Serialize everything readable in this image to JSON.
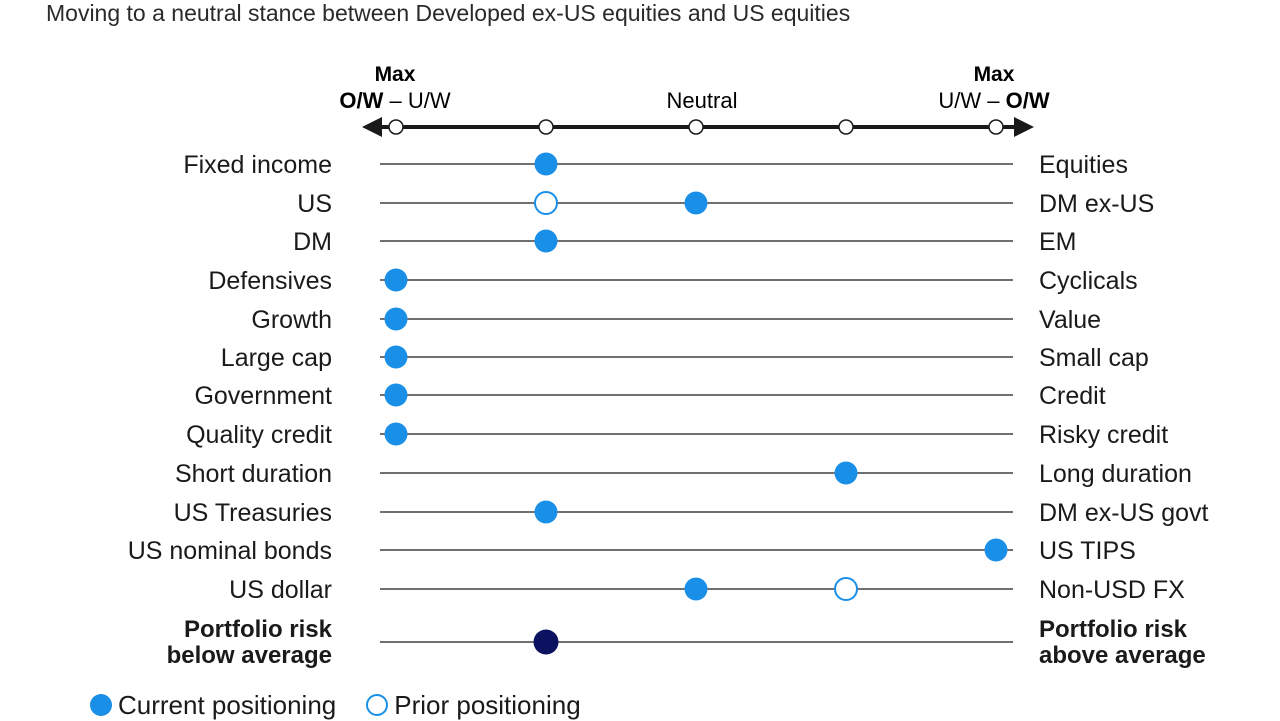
{
  "title": "Moving to a neutral stance between Developed ex-US equities and US equities",
  "colors": {
    "current": "#1a8fe8",
    "prior_outline": "#1a8fe8",
    "portfolio": "#0c1160",
    "line": "#1a1a1a"
  },
  "scale": {
    "left_top": "Max",
    "left_bottom_bold": "O/W",
    "left_bottom_rest": " – U/W",
    "center": "Neutral",
    "right_top": "Max",
    "right_bottom_rest": "U/W – ",
    "right_bottom_bold": "O/W"
  },
  "legend": {
    "current": "Current positioning",
    "prior": "Prior positioning"
  },
  "chart_data": {
    "type": "scatter",
    "positions": [
      -2,
      -1,
      0,
      1,
      2
    ],
    "rows": [
      {
        "left": "Fixed income",
        "right": "Equities",
        "current": -1
      },
      {
        "left": "US",
        "right": "DM ex-US",
        "current": 0,
        "prior": -1
      },
      {
        "left": "DM",
        "right": "EM",
        "current": -1
      },
      {
        "left": "Defensives",
        "right": "Cyclicals",
        "current": -2
      },
      {
        "left": "Growth",
        "right": "Value",
        "current": -2
      },
      {
        "left": "Large cap",
        "right": "Small cap",
        "current": -2
      },
      {
        "left": "Government",
        "right": "Credit",
        "current": -2
      },
      {
        "left": "Quality credit",
        "right": "Risky credit",
        "current": -2
      },
      {
        "left": "Short duration",
        "right": "Long duration",
        "current": 1
      },
      {
        "left": "US Treasuries",
        "right": "DM ex-US govt",
        "current": -1
      },
      {
        "left": "US nominal bonds",
        "right": "US TIPS",
        "current": 2
      },
      {
        "left": "US dollar",
        "right": "Non-USD FX",
        "current": 0,
        "prior": 1
      },
      {
        "left": "Portfolio risk\nbelow average",
        "right": "Portfolio risk\nabove average",
        "current": -1,
        "bold": true,
        "portfolio": true
      }
    ]
  }
}
